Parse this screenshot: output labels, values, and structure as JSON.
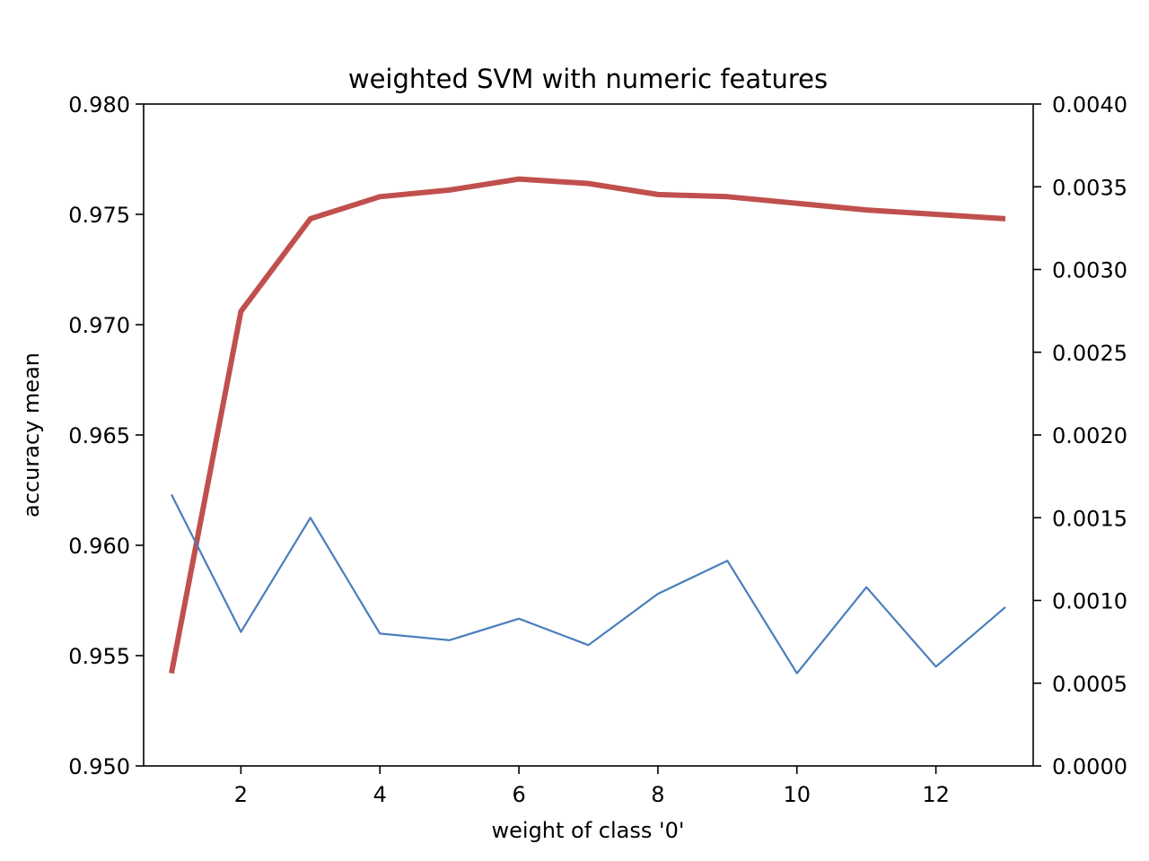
{
  "chart_data": {
    "type": "line",
    "title": "weighted SVM with numeric features",
    "xlabel": "weight of class '0'",
    "ylabel": "accuracy mean",
    "y2label": "",
    "xlim": [
      0.6,
      13.4
    ],
    "ylim": [
      0.95,
      0.98
    ],
    "y2lim": [
      0.0,
      0.004
    ],
    "xticks": [
      2,
      4,
      6,
      8,
      10,
      12
    ],
    "yticks": [
      0.95,
      0.955,
      0.96,
      0.965,
      0.97,
      0.975,
      0.98
    ],
    "yticklabels": [
      "0.950",
      "0.955",
      "0.960",
      "0.965",
      "0.970",
      "0.975",
      "0.980"
    ],
    "y2ticks": [
      0.0,
      0.0005,
      0.001,
      0.0015,
      0.002,
      0.0025,
      0.003,
      0.0035,
      0.004
    ],
    "y2ticklabels": [
      "0.0000",
      "0.0005",
      "0.0010",
      "0.0015",
      "0.0020",
      "0.0025",
      "0.0030",
      "0.0035",
      "0.0040"
    ],
    "x": [
      1,
      2,
      3,
      4,
      5,
      6,
      7,
      8,
      9,
      10,
      11,
      12,
      13
    ],
    "grid": false,
    "series": [
      {
        "axis": "left",
        "color": "#c0504d",
        "values": [
          0.9542,
          0.9706,
          0.9748,
          0.9758,
          0.9761,
          0.9766,
          0.9764,
          0.9759,
          0.9758,
          0.9755,
          0.9752,
          0.975,
          0.9748
        ]
      },
      {
        "axis": "right",
        "color": "#4a7ebb",
        "values": [
          0.00164,
          0.00081,
          0.0015,
          0.0008,
          0.00076,
          0.00089,
          0.00073,
          0.00104,
          0.00124,
          0.00056,
          0.00108,
          0.0006,
          0.00096
        ]
      }
    ]
  }
}
